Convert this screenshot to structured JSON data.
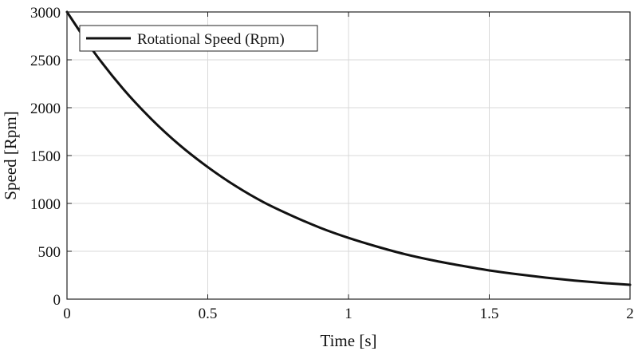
{
  "chart_data": {
    "type": "line",
    "title": "",
    "xlabel": "Time [s]",
    "ylabel": "Speed [Rpm]",
    "xlim": [
      0,
      2
    ],
    "ylim": [
      0,
      3000
    ],
    "x_ticks": [
      0,
      0.5,
      1,
      1.5,
      2
    ],
    "x_tick_labels": [
      "0",
      "0.5",
      "1",
      "1.5",
      "2"
    ],
    "y_ticks": [
      0,
      500,
      1000,
      1500,
      2000,
      2500,
      3000
    ],
    "y_tick_labels": [
      "0",
      "500",
      "1000",
      "1500",
      "2000",
      "2500",
      "3000"
    ],
    "grid": true,
    "legend_position": "top-left",
    "series": [
      {
        "name": "Rotational Speed (Rpm)",
        "color": "#111111",
        "x": [
          0,
          0.1,
          0.2,
          0.3,
          0.4,
          0.5,
          0.6,
          0.7,
          0.8,
          0.9,
          1.0,
          1.1,
          1.2,
          1.3,
          1.4,
          1.5,
          1.6,
          1.7,
          1.8,
          1.9,
          2.0
        ],
        "y": [
          3000,
          2565,
          2195,
          1880,
          1610,
          1380,
          1180,
          1010,
          870,
          745,
          640,
          550,
          470,
          405,
          350,
          300,
          260,
          225,
          195,
          170,
          150
        ]
      }
    ]
  }
}
